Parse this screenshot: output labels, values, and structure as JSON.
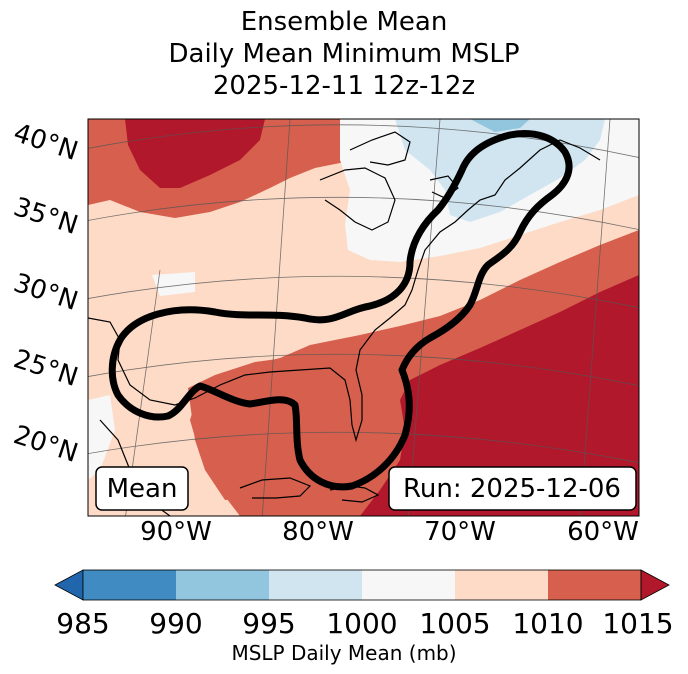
{
  "title": {
    "line1": "Ensemble Mean",
    "line2": "Daily Mean Minimum MSLP",
    "line3": "2025-12-11 12z-12z"
  },
  "map": {
    "lat_labels": [
      "40°N",
      "35°N",
      "30°N",
      "25°N",
      "20°N"
    ],
    "lon_labels": [
      "90°W",
      "80°W",
      "70°W",
      "60°W"
    ],
    "mean_label": "Mean",
    "run_label": "Run: 2025-12-06",
    "region_icons": [
      "coastline-icon",
      "contour-icon"
    ]
  },
  "colorbar": {
    "label": "MSLP Daily Mean (mb)",
    "ticks": [
      "985",
      "990",
      "995",
      "1000",
      "1005",
      "1010",
      "1015"
    ],
    "colors": [
      "#2166ac",
      "#4393c3",
      "#92c5de",
      "#d1e5f0",
      "#f7f7f7",
      "#fddbc7",
      "#d6604d",
      "#b2182b"
    ]
  }
}
